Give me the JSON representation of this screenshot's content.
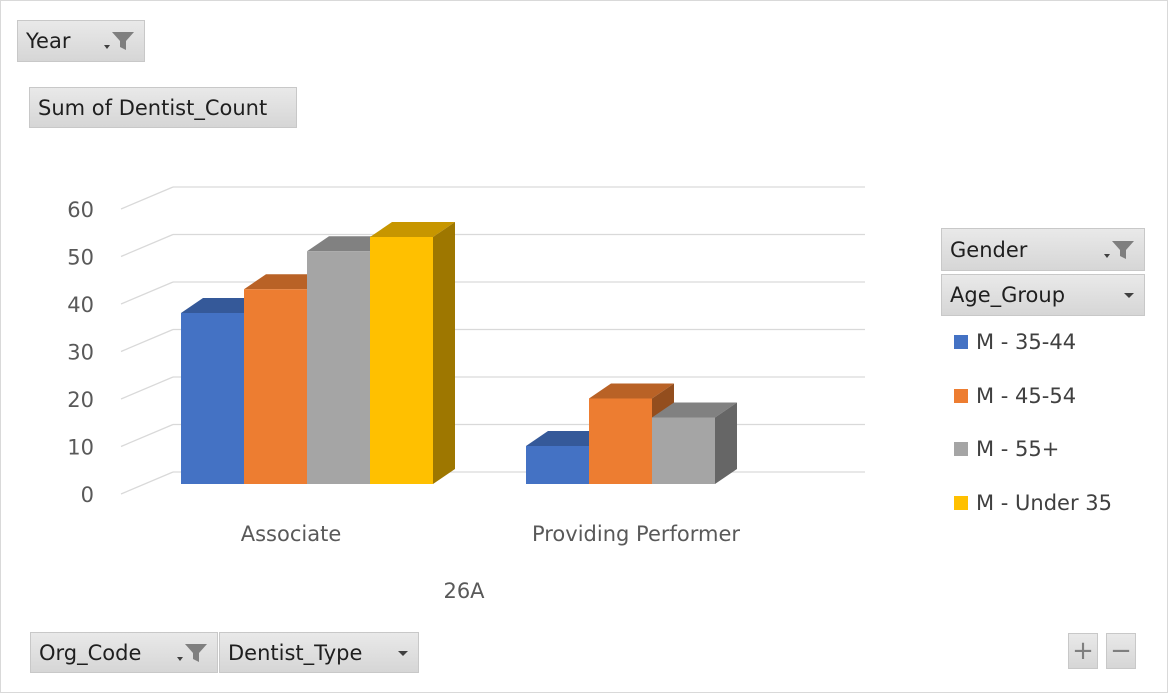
{
  "filters": {
    "year": "Year",
    "values_field": "Sum of Dentist_Count",
    "legend_header_1": "Gender",
    "legend_header_2": "Age_Group",
    "axis_field_1": "Org_Code",
    "axis_field_2": "Dentist_Type"
  },
  "zoom": {
    "plus": "+",
    "minus": "−"
  },
  "colors": {
    "M - 35-44": "#4472c4",
    "M - 45-54": "#ed7d31",
    "M - 55+": "#a5a5a5",
    "M - Under 35": "#ffc000"
  },
  "chart_data": {
    "type": "bar",
    "style": "3d-clustered-column",
    "categories": [
      "Associate",
      "Providing Performer"
    ],
    "group_label": "26A",
    "series": [
      {
        "name": "M - 35-44",
        "values": [
          36,
          8
        ]
      },
      {
        "name": "M - 45-54",
        "values": [
          41,
          18
        ]
      },
      {
        "name": "M - 55+",
        "values": [
          49,
          14
        ]
      },
      {
        "name": "M - Under 35",
        "values": [
          52,
          null
        ]
      }
    ],
    "yticks": [
      0,
      10,
      20,
      30,
      40,
      50,
      60
    ],
    "ylim": [
      0,
      60
    ],
    "grid": true,
    "legend_position": "right"
  }
}
